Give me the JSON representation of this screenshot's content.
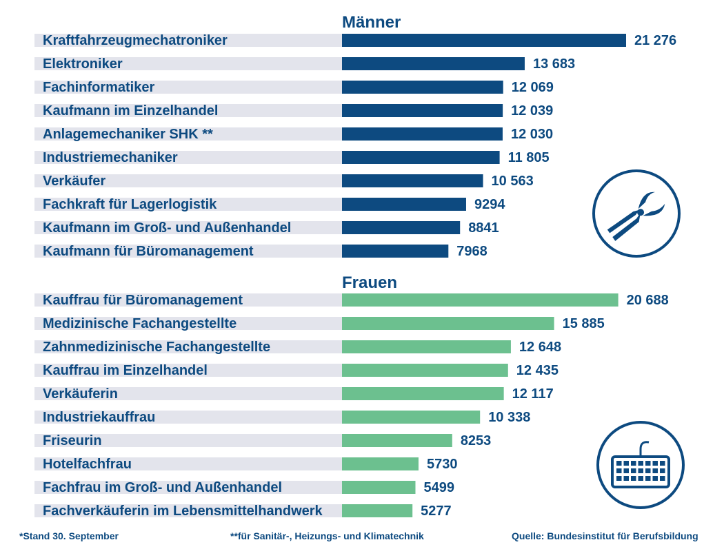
{
  "colors": {
    "text": "#0d4a80",
    "men_bar": "#0d4a80",
    "women_bar": "#6cc08f",
    "label_bg": "#e3e4ec"
  },
  "chart_data": [
    {
      "type": "bar",
      "orientation": "horizontal",
      "title": "Männer",
      "categories": [
        "Kraftfahrzeugmechatroniker",
        "Elektroniker",
        "Fachinformatiker",
        "Kaufmann im Einzelhandel",
        "Anlagemechaniker SHK **",
        "Industriemechaniker",
        "Verkäufer",
        "Fachkraft für Lagerlogistik",
        "Kaufmann im Groß- und Außenhandel",
        "Kaufmann für Büromanagement"
      ],
      "values": [
        21276,
        13683,
        12069,
        12039,
        12030,
        11805,
        10563,
        9294,
        8841,
        7968
      ],
      "value_labels": [
        "21 276",
        "13 683",
        "12 069",
        "12 039",
        "12 030",
        "11 805",
        "10 563",
        "9294",
        "8841",
        "7968"
      ],
      "icon": "pliers-icon"
    },
    {
      "type": "bar",
      "orientation": "horizontal",
      "title": "Frauen",
      "categories": [
        "Kauffrau für Büromanagement",
        "Medizinische Fachangestellte",
        "Zahnmedizinische Fachangestellte",
        "Kauffrau im Einzelhandel",
        "Verkäuferin",
        "Industriekauffrau",
        "Friseurin",
        "Hotelfachfrau",
        "Fachfrau im Groß- und Außenhandel",
        "Fachverkäuferin im Lebensmittelhandwerk"
      ],
      "values": [
        20688,
        15885,
        12648,
        12435,
        12117,
        10338,
        8253,
        5730,
        5499,
        5277
      ],
      "value_labels": [
        "20 688",
        "15 885",
        "12 648",
        "12 435",
        "12 117",
        "10 338",
        "8253",
        "5730",
        "5499",
        "5277"
      ],
      "icon": "keyboard-icon"
    }
  ],
  "footer": {
    "note_date": "*Stand 30. September",
    "note_shk": "**für Sanitär-, Heizungs- und Klimatechnik",
    "source": "Quelle: Bundesinstitut für Berufsbildung"
  }
}
